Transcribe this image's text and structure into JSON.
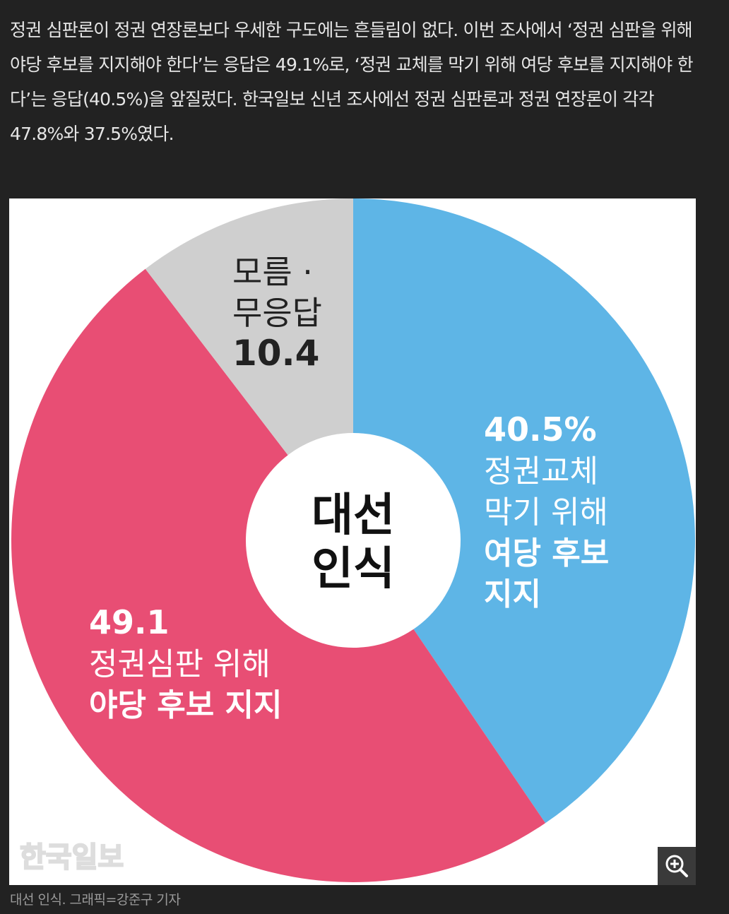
{
  "article": {
    "paragraph": "정권 심판론이 정권 연장론보다 우세한 구도에는 흔들림이 없다. 이번 조사에서 ‘정권 심판을 위해 야당 후보를 지지해야 한다’는 응답은 49.1%로, ‘정권 교체를 막기 위해 여당 후보를 지지해야 한다’는 응답(40.5%)을 앞질렀다. 한국일보 신년 조사에선 정권 심판론과 정권 연장론이 각각 47.8%와 37.5%였다."
  },
  "chart_data": {
    "type": "pie",
    "title": "대선\n인식",
    "slices": [
      {
        "value": 40.5,
        "value_label": "40.5%",
        "label_lines": [
          "정권교체",
          "막기 위해"
        ],
        "bold_lines": [
          "여당 후보",
          "지지"
        ],
        "color": "#5eb5e6"
      },
      {
        "value": 49.1,
        "value_label": "49.1",
        "label_lines": [
          "정권심판 위해"
        ],
        "bold_lines": [
          "야당 후보 지지"
        ],
        "color": "#e84e74"
      },
      {
        "value": 10.4,
        "value_label": "10.4",
        "label_lines": [
          "모름 ·",
          "무응답"
        ],
        "bold_lines": [],
        "color": "#cfcfcf"
      }
    ],
    "watermark": "한국일보"
  },
  "colors": {
    "page_background": "#222222",
    "text": "#e6e6e6",
    "caption_text": "#9a9a9a",
    "center_text": "#111111",
    "label_light": "#ffffff",
    "label_dark": "#222222"
  },
  "zoom": {
    "icon": "zoom-in-icon"
  },
  "caption": {
    "text": "대선 인식. 그래픽=강준구 기자"
  }
}
